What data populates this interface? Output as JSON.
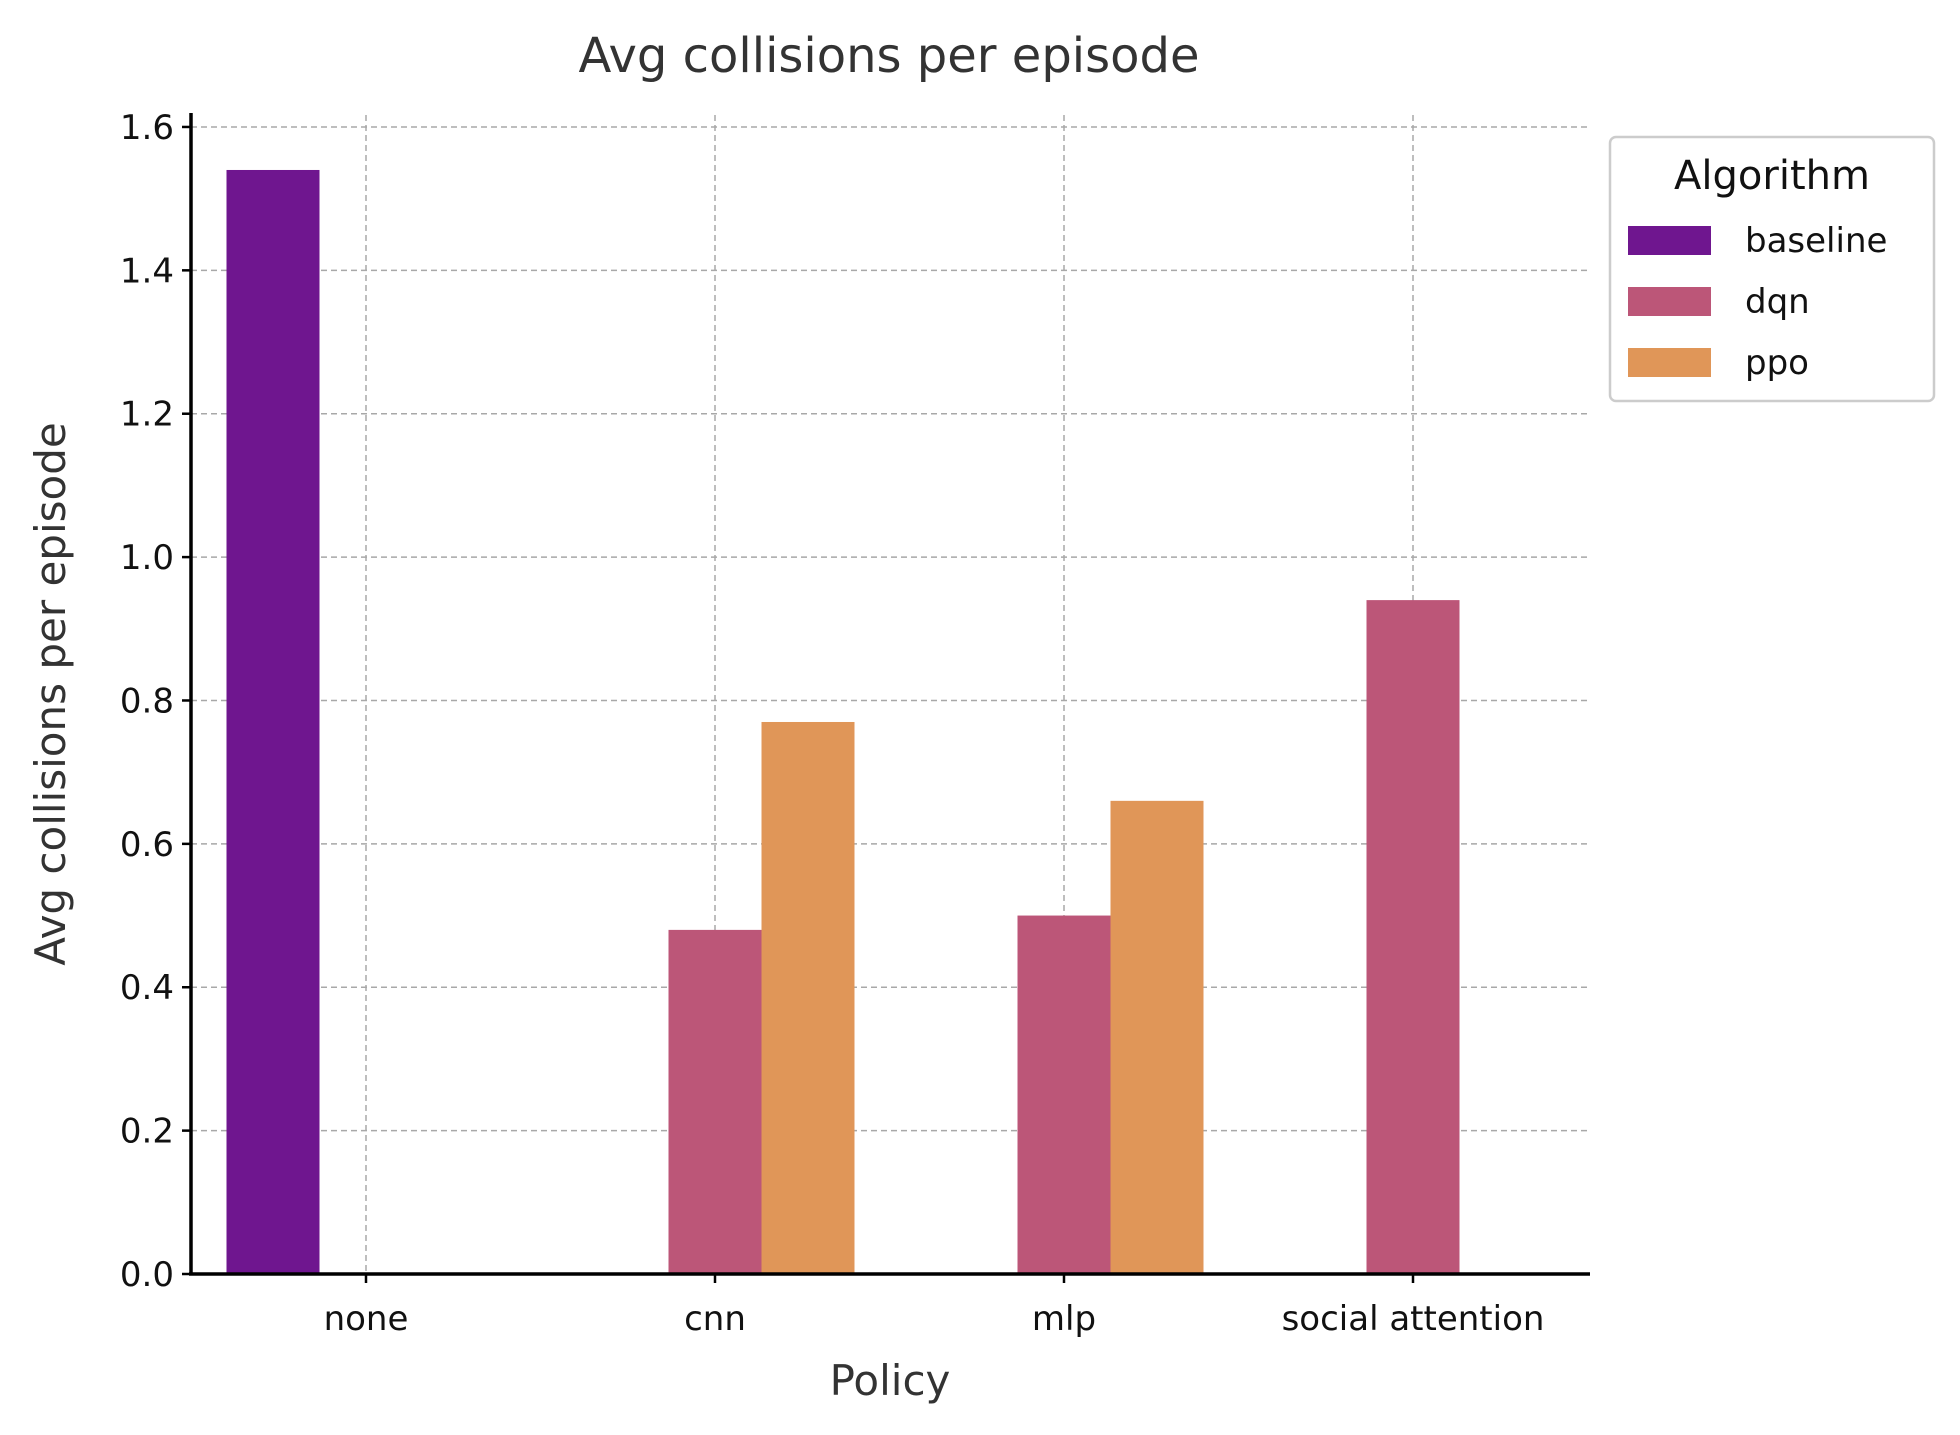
{
  "chart_data": {
    "type": "bar",
    "title": "Avg collisions per episode",
    "xlabel": "Policy",
    "ylabel": "Avg collisions per episode",
    "categories": [
      "none",
      "cnn",
      "mlp",
      "social attention"
    ],
    "series": [
      {
        "name": "baseline",
        "values": [
          1.54,
          null,
          null,
          null
        ],
        "color": "#6f168f"
      },
      {
        "name": "dqn",
        "values": [
          null,
          0.48,
          0.5,
          0.94
        ],
        "color": "#bc5678"
      },
      {
        "name": "ppo",
        "values": [
          null,
          0.77,
          0.66,
          null
        ],
        "color": "#e09658"
      }
    ],
    "ylim": [
      0,
      1.62
    ],
    "yticks": [
      "0.0",
      "0.2",
      "0.4",
      "0.6",
      "0.8",
      "1.0",
      "1.2",
      "1.4",
      "1.6"
    ],
    "grid": true,
    "legend": {
      "title": "Algorithm",
      "placement": "outside-top-right"
    }
  }
}
